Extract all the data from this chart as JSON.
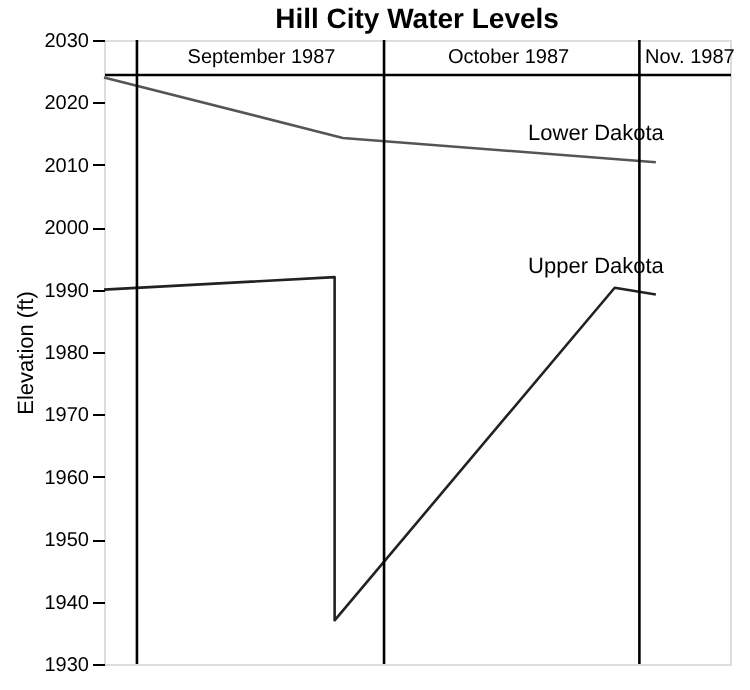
{
  "chart_data": {
    "type": "line",
    "title": "Hill City Water Levels",
    "ylabel": "Elevation (ft)",
    "xlim": [
      "1987-08-28",
      "1987-11-12"
    ],
    "xticks": [
      {
        "value": "1987-09-16",
        "label": "September 1987"
      },
      {
        "value": "1987-10-16",
        "label": "October 1987"
      },
      {
        "value": "1987-11-07",
        "label": "Nov. 1987"
      }
    ],
    "ylim": [
      1930,
      2030
    ],
    "yticks": [
      1930,
      1940,
      1950,
      1960,
      1970,
      1980,
      1990,
      2000,
      2010,
      2020,
      2030
    ],
    "grid": false,
    "marker": "none",
    "line_style": "solid",
    "series": [
      {
        "name": "Lower Dakota",
        "color": "#555555",
        "x": [
          "1987-08-28",
          "1987-09-26",
          "1987-11-03"
        ],
        "values": [
          2024,
          2014.3,
          2010.4
        ]
      },
      {
        "name": "Upper Dakota",
        "color": "#222222",
        "x": [
          "1987-08-28",
          "1987-09-25",
          "1987-09-25",
          "1987-10-29",
          "1987-11-03"
        ],
        "values": [
          1990,
          1992,
          1937,
          1990.3,
          1989.2
        ]
      }
    ],
    "ref_lines": [
      {
        "axis": "x",
        "value": "1987-09-01",
        "color": "#000000"
      },
      {
        "axis": "x",
        "value": "1987-10-01",
        "color": "#000000"
      },
      {
        "axis": "x",
        "value": "1987-11-01",
        "color": "#000000"
      }
    ]
  }
}
